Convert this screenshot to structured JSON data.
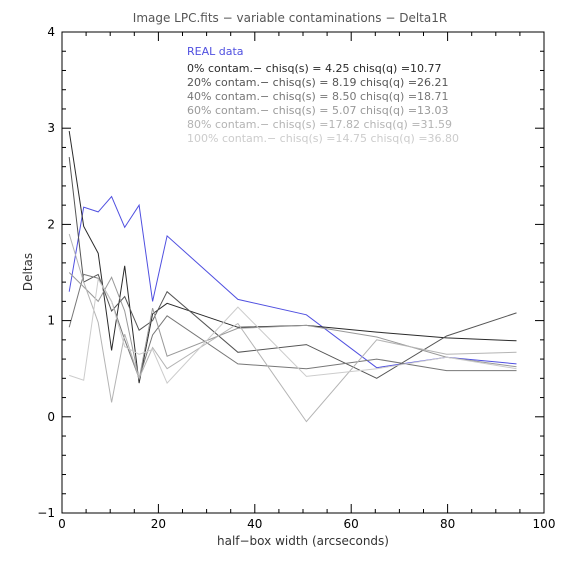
{
  "chart_data": {
    "type": "line",
    "title": "Image LPC.fits − variable contaminations − Delta1R",
    "xlabel": "half−box width (arcseconds)",
    "ylabel": "Deltas",
    "xlim": [
      0,
      100
    ],
    "ylim": [
      -1,
      4
    ],
    "xticks": [
      0,
      20,
      40,
      60,
      80,
      100
    ],
    "yticks": [
      -1,
      0,
      1,
      2,
      3,
      4
    ],
    "xtick_labels": [
      "0",
      "20",
      "40",
      "60",
      "80",
      "100"
    ],
    "ytick_labels": [
      "−1",
      "0",
      "1",
      "2",
      "3",
      "4"
    ],
    "grid": false,
    "legend_position": "top-center",
    "legend": [
      "REAL data",
      "0% contam.−  chisq(s) = 4.25 chisq(q) =10.77",
      "20% contam.−  chisq(s) = 8.19 chisq(q) =26.21",
      "40% contam.−  chisq(s) = 8.50 chisq(q) =18.71",
      "60% contam.−  chisq(s) = 5.07 chisq(q) =13.03",
      "80% contam.−  chisq(s) =17.82 chisq(q) =31.59",
      "100% contam.−  chisq(s) =14.75 chisq(q) =36.80"
    ],
    "x": [
      1.5,
      4.5,
      7.5,
      10.3,
      13,
      16,
      18.8,
      21.8,
      36.5,
      50.7,
      65.3,
      79.8,
      94.3
    ],
    "series": [
      {
        "color": "#5050e0",
        "values": [
          1.3,
          2.18,
          2.13,
          2.29,
          1.97,
          2.2,
          1.2,
          1.88,
          1.22,
          1.06,
          0.51,
          0.62,
          0.55
        ]
      },
      {
        "color": "#2a2a2a",
        "values": [
          2.97,
          1.98,
          1.7,
          0.69,
          1.57,
          0.35,
          1.07,
          1.18,
          0.93,
          0.95,
          0.88,
          0.82,
          0.79
        ]
      },
      {
        "color": "#555555",
        "values": [
          2.7,
          1.4,
          1.48,
          1.1,
          1.25,
          0.9,
          1.0,
          1.3,
          0.67,
          0.75,
          0.4,
          0.84,
          1.08
        ]
      },
      {
        "color": "#777777",
        "values": [
          0.93,
          1.48,
          1.44,
          1.2,
          0.8,
          0.4,
          0.85,
          1.05,
          0.55,
          0.5,
          0.6,
          0.48,
          0.48
        ]
      },
      {
        "color": "#999999",
        "values": [
          1.5,
          1.35,
          1.2,
          1.45,
          1.1,
          0.39,
          1.13,
          0.63,
          0.92,
          0.95,
          0.83,
          0.62,
          0.52
        ]
      },
      {
        "color": "#b4b4b4",
        "values": [
          1.9,
          1.4,
          0.98,
          0.15,
          0.86,
          0.4,
          0.72,
          0.5,
          0.97,
          -0.05,
          0.8,
          0.65,
          0.67
        ]
      },
      {
        "color": "#cccccc",
        "values": [
          0.43,
          0.38,
          1.43,
          1.2,
          0.73,
          0.65,
          0.7,
          0.35,
          1.14,
          0.42,
          0.5,
          0.62,
          0.5
        ]
      }
    ]
  }
}
